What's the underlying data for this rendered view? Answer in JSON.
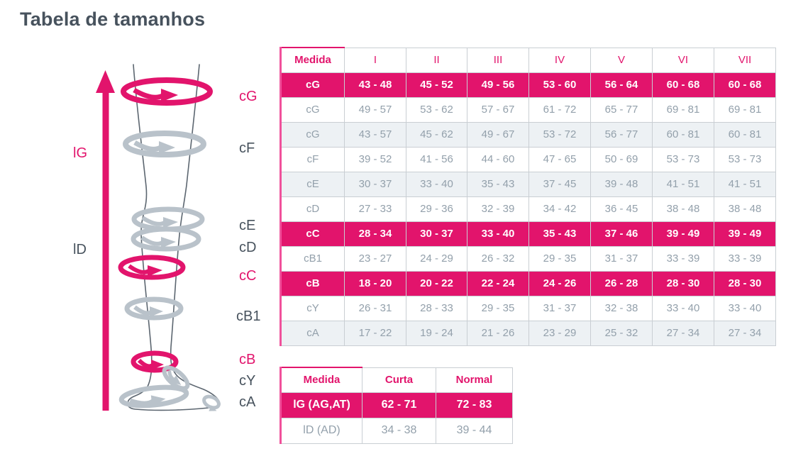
{
  "page": {
    "title": "Tabela de tamanhos"
  },
  "colors": {
    "accent_pink": "#E2146C",
    "light_pink_border": "#F0519B",
    "band_gray": "#B9C2CA",
    "text_dark": "#47525D",
    "text_gray": "#93A0AB",
    "shaded_row_bg": "#EDF1F4",
    "grid_border": "#C9CED3"
  },
  "diagram": {
    "labels": {
      "lG": "lG",
      "lD": "lD",
      "cG": "cG",
      "cF": "cF",
      "cE": "cE",
      "cD": "cD",
      "cC": "cC",
      "cB1": "cB1",
      "cB": "cB",
      "cY": "cY",
      "cA": "cA"
    }
  },
  "chart_data": [
    {
      "type": "table",
      "name": "circumference-size-table",
      "columns": [
        "Medida",
        "I",
        "II",
        "III",
        "IV",
        "V",
        "VI",
        "VII"
      ],
      "rows": [
        {
          "measure": "cG",
          "style": "pink",
          "values": [
            "43 - 48",
            "45 - 52",
            "49 - 56",
            "53 - 60",
            "56 - 64",
            "60 - 68",
            "60 - 68"
          ]
        },
        {
          "measure": "cG",
          "style": "white",
          "values": [
            "49 - 57",
            "53 - 62",
            "57 - 67",
            "61 - 72",
            "65 - 77",
            "69 - 81",
            "69 - 81"
          ]
        },
        {
          "measure": "cG",
          "style": "gray",
          "values": [
            "43 - 57",
            "45 - 62",
            "49 - 67",
            "53 - 72",
            "56 - 77",
            "60 - 81",
            "60 - 81"
          ]
        },
        {
          "measure": "cF",
          "style": "white",
          "values": [
            "39 - 52",
            "41 - 56",
            "44 - 60",
            "47 - 65",
            "50 - 69",
            "53 - 73",
            "53 - 73"
          ]
        },
        {
          "measure": "cE",
          "style": "gray",
          "values": [
            "30 - 37",
            "33 - 40",
            "35 - 43",
            "37 - 45",
            "39 - 48",
            "41 - 51",
            "41 - 51"
          ]
        },
        {
          "measure": "cD",
          "style": "white",
          "values": [
            "27 - 33",
            "29 - 36",
            "32 - 39",
            "34 - 42",
            "36 - 45",
            "38 - 48",
            "38 - 48"
          ]
        },
        {
          "measure": "cC",
          "style": "pink",
          "values": [
            "28 - 34",
            "30 - 37",
            "33 - 40",
            "35 - 43",
            "37 - 46",
            "39 - 49",
            "39 - 49"
          ]
        },
        {
          "measure": "cB1",
          "style": "white",
          "values": [
            "23 - 27",
            "24 - 29",
            "26 - 32",
            "29 - 35",
            "31 - 37",
            "33 - 39",
            "33 - 39"
          ]
        },
        {
          "measure": "cB",
          "style": "pink",
          "values": [
            "18 - 20",
            "20 - 22",
            "22 - 24",
            "24 - 26",
            "26 - 28",
            "28 - 30",
            "28 - 30"
          ]
        },
        {
          "measure": "cY",
          "style": "white",
          "values": [
            "26 - 31",
            "28 - 33",
            "29 - 35",
            "31 - 37",
            "32 - 38",
            "33 - 40",
            "33 - 40"
          ]
        },
        {
          "measure": "cA",
          "style": "gray",
          "values": [
            "17 - 22",
            "19 - 24",
            "21 - 26",
            "23 - 29",
            "25 - 32",
            "27 - 34",
            "27 - 34"
          ]
        }
      ]
    },
    {
      "type": "table",
      "name": "length-size-table",
      "columns": [
        "Medida",
        "Curta",
        "Normal"
      ],
      "rows": [
        {
          "measure": "lG (AG,AT)",
          "style": "pink",
          "values": [
            "62 - 71",
            "72 - 83"
          ]
        },
        {
          "measure": "lD (AD)",
          "style": "white",
          "values": [
            "34 - 38",
            "39 - 44"
          ]
        }
      ]
    }
  ]
}
